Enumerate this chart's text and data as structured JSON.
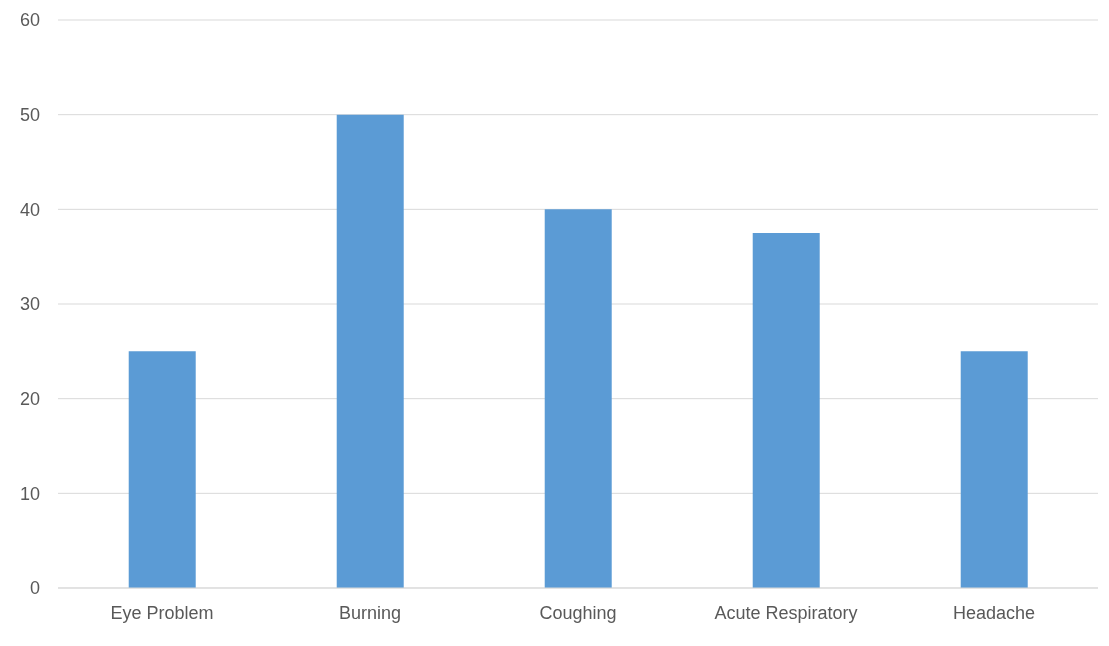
{
  "chart_data": {
    "type": "bar",
    "categories": [
      "Eye Problem",
      "Burning",
      "Coughing",
      "Acute Respiratory",
      "Headache"
    ],
    "values": [
      25,
      50,
      40,
      37.5,
      25
    ],
    "color": "#5b9bd5",
    "ylim": [
      0,
      60
    ],
    "yticks": [
      0,
      10,
      20,
      30,
      40,
      50,
      60
    ],
    "grid": "y"
  }
}
